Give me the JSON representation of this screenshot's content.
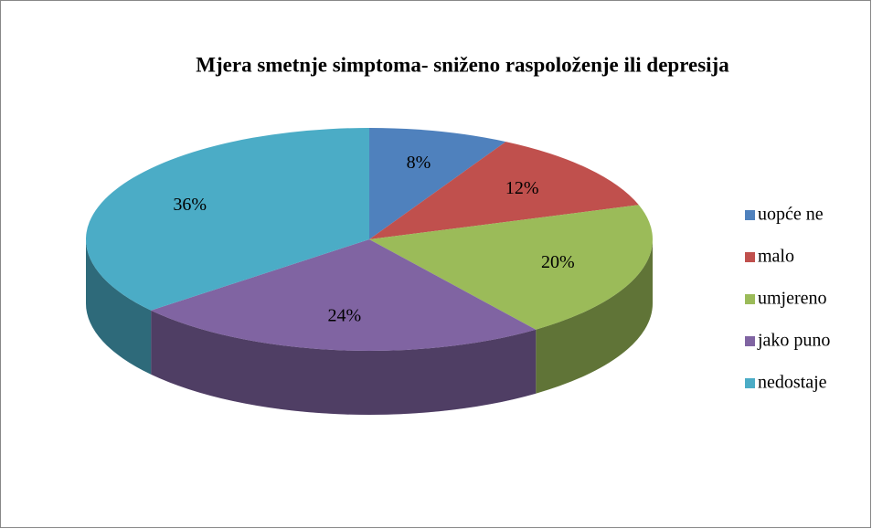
{
  "chart_data": {
    "type": "pie",
    "title": "Mjera smetnje simptoma- sniženo raspoloženje ili depresija",
    "categories": [
      "uopće ne",
      "malo",
      "umjereno",
      "jako puno",
      "nedostaje"
    ],
    "values": [
      8,
      12,
      20,
      24,
      36
    ],
    "value_labels": [
      "8%",
      "12%",
      "20%",
      "24%",
      "36%"
    ],
    "colors": [
      "#4f81bd",
      "#c0504d",
      "#9bbb59",
      "#8064a2",
      "#4bacc6"
    ],
    "legend": "right"
  }
}
